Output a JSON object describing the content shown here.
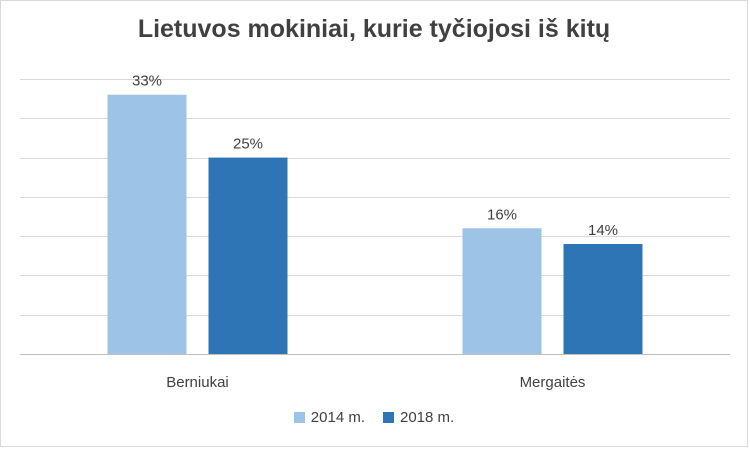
{
  "chart_data": {
    "type": "bar",
    "title": "Lietuvos mokiniai, kurie tyčiojosi iš kitų",
    "categories": [
      "Berniukai",
      "Mergaitės"
    ],
    "series": [
      {
        "name": "2014 m.",
        "values": [
          33,
          16
        ],
        "labels": [
          "33%",
          "16%"
        ],
        "color": "#9dc3e6"
      },
      {
        "name": "2018 m.",
        "values": [
          25,
          14
        ],
        "labels": [
          "25%",
          "14%"
        ],
        "color": "#2e75b6"
      }
    ],
    "ylim": [
      0,
      35
    ],
    "grid": true,
    "legend_position": "bottom"
  }
}
